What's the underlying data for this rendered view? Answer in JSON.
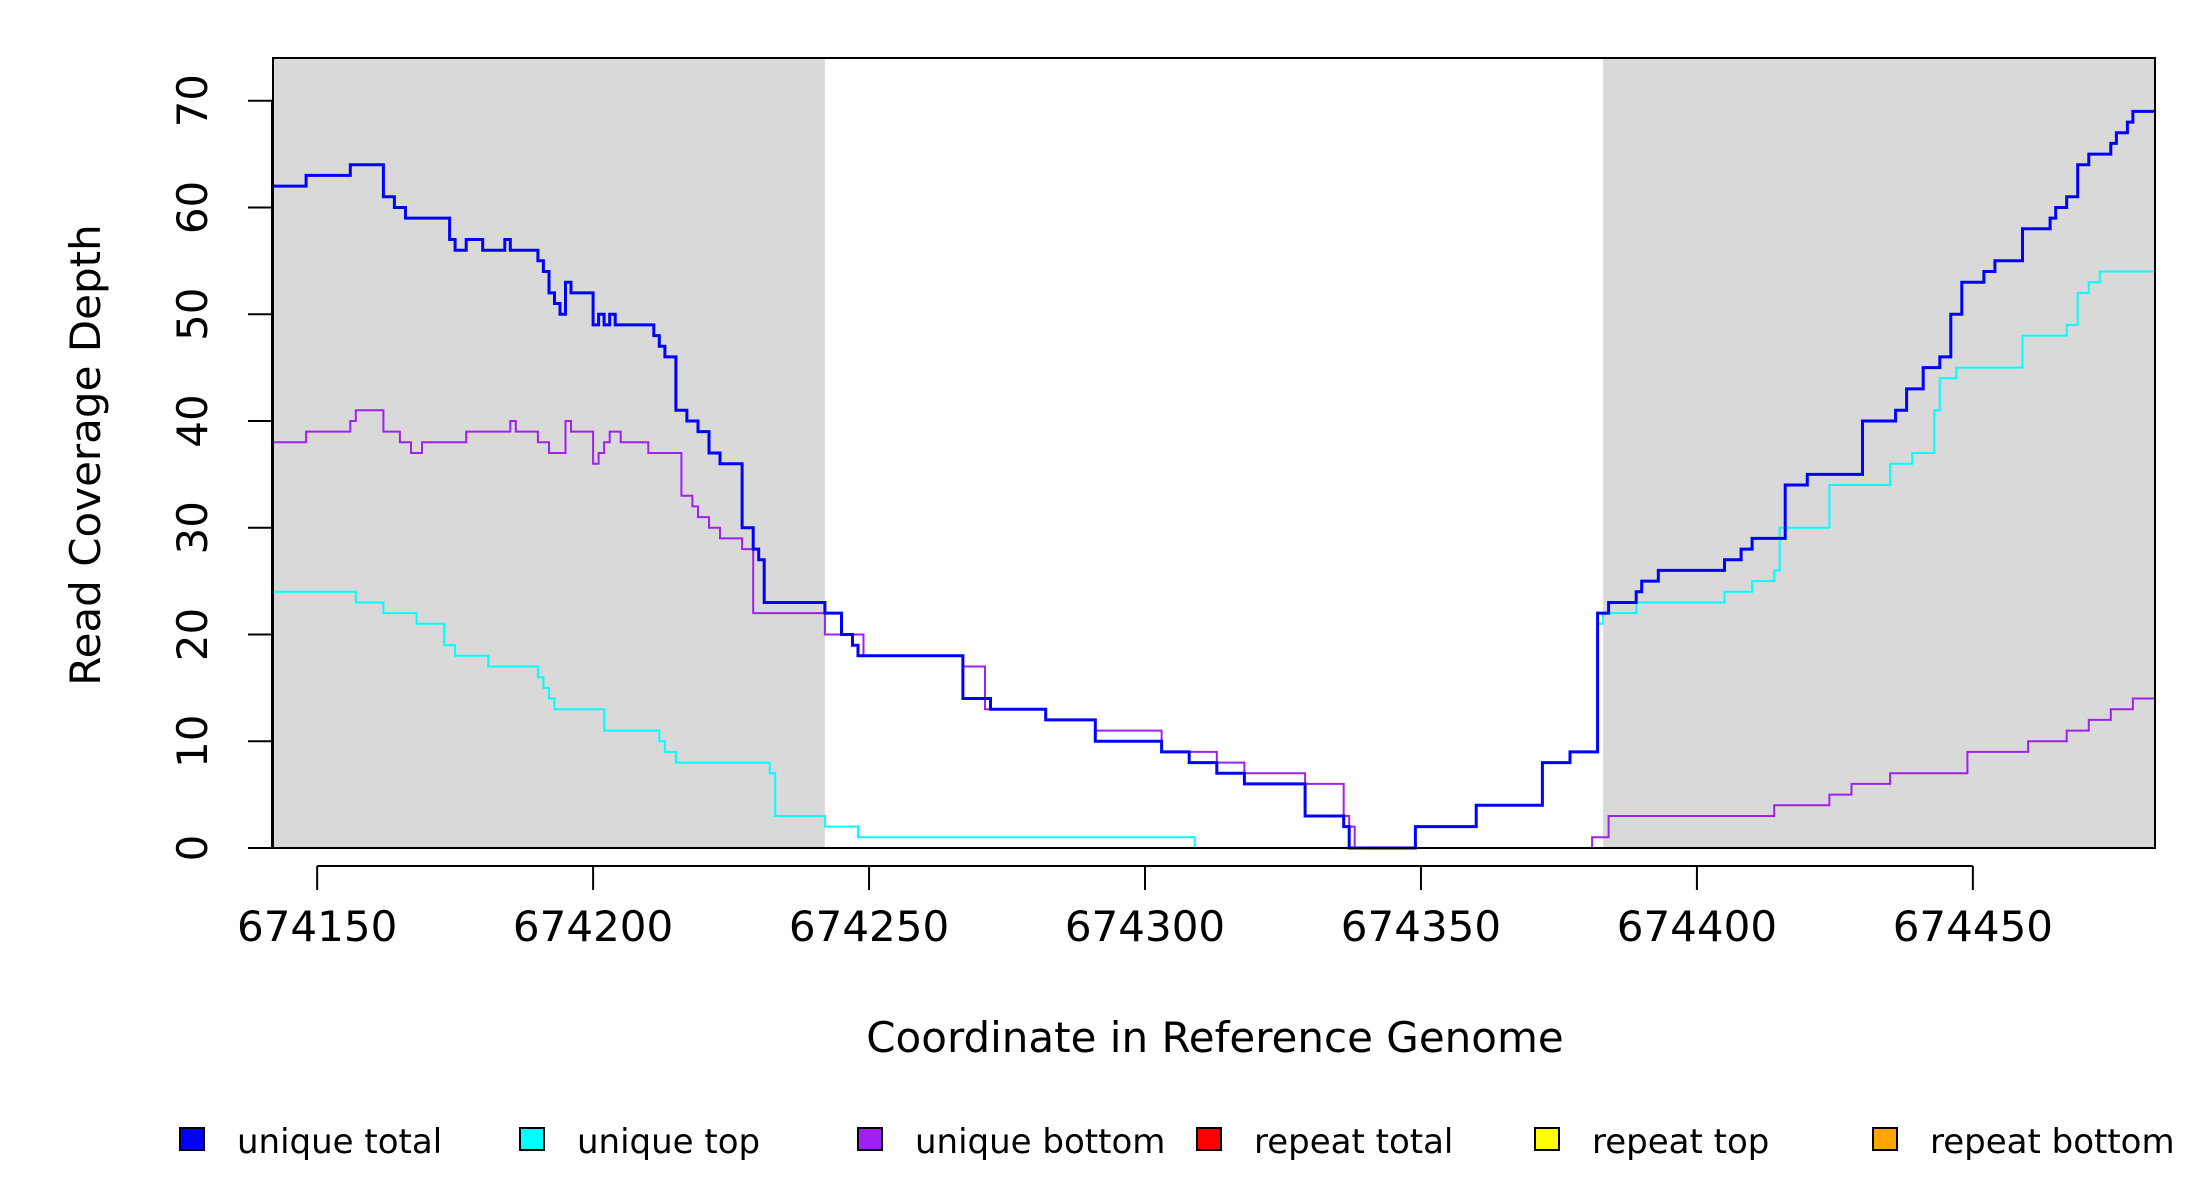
{
  "chart_data": {
    "type": "line",
    "xlabel": "Coordinate in Reference Genome",
    "ylabel": "Read Coverage Depth",
    "xlim": [
      674142,
      674483
    ],
    "ylim": [
      0,
      74
    ],
    "x_ticks": [
      674150,
      674200,
      674250,
      674300,
      674350,
      674400,
      674450
    ],
    "y_ticks": [
      0,
      10,
      20,
      30,
      40,
      50,
      60,
      70
    ],
    "shaded_regions": [
      [
        674142,
        674242
      ],
      [
        674383,
        674483
      ]
    ],
    "background_colors": {
      "shaded": "#d9d9d9",
      "plot": "#ffffff"
    },
    "step_style": "post",
    "legend": [
      {
        "label": "unique total",
        "color": "#0000ff"
      },
      {
        "label": "unique top",
        "color": "#00ffff"
      },
      {
        "label": "unique bottom",
        "color": "#a020f0"
      },
      {
        "label": "repeat total",
        "color": "#ff0000"
      },
      {
        "label": "repeat top",
        "color": "#ffff00"
      },
      {
        "label": "repeat bottom",
        "color": "#ffa500"
      }
    ],
    "legend_position": "bottom",
    "series": [
      {
        "name": "unique total",
        "color": "#0000ff",
        "width": 3,
        "x": [
          674142,
          674148,
          674156,
          674162,
          674164,
          674166,
          674174,
          674175,
          674177,
          674180,
          674184,
          674185,
          674186,
          674190,
          674191,
          674192,
          674193,
          674194,
          674195,
          674196,
          674200,
          674201,
          674202,
          674203,
          674204,
          674206,
          674211,
          674212,
          674213,
          674215,
          674217,
          674219,
          674221,
          674223,
          674227,
          674229,
          674230,
          674231,
          674242,
          674245,
          674247,
          674248,
          674250,
          674267,
          674272,
          674282,
          674291,
          674303,
          674308,
          674313,
          674318,
          674329,
          674336,
          674337,
          674338,
          674349,
          674360,
          674372,
          674377,
          674382,
          674383,
          674384,
          674385,
          674386,
          674389,
          674390,
          674391,
          674393,
          674397,
          674399,
          674400,
          674405,
          674408,
          674410,
          674413,
          674414,
          674415,
          674416,
          674417,
          674418,
          674419,
          674420,
          674425,
          674430,
          674436,
          674437,
          674438,
          674441,
          674444,
          674446,
          674448,
          674450,
          674452,
          674454,
          674459,
          674464,
          674465,
          674467,
          674468,
          674469,
          674471,
          674473,
          674475,
          674476,
          674477,
          674478,
          674479,
          674483
        ],
        "y": [
          62,
          63,
          64,
          61,
          60,
          59,
          57,
          56,
          57,
          56,
          57,
          56,
          56,
          55,
          54,
          52,
          51,
          50,
          53,
          52,
          49,
          50,
          49,
          50,
          49,
          49,
          48,
          47,
          46,
          41,
          40,
          39,
          37,
          36,
          30,
          28,
          27,
          23,
          22,
          20,
          19,
          18,
          18,
          14,
          13,
          12,
          10,
          9,
          8,
          7,
          6,
          3,
          2,
          0,
          0,
          2,
          4,
          8,
          9,
          22,
          22,
          23,
          23,
          23,
          24,
          25,
          25,
          26,
          26,
          26,
          26,
          27,
          28,
          29,
          29,
          29,
          29,
          34,
          34,
          34,
          34,
          35,
          35,
          40,
          41,
          41,
          43,
          45,
          46,
          50,
          53,
          53,
          54,
          55,
          58,
          59,
          60,
          61,
          61,
          64,
          65,
          65,
          66,
          67,
          67,
          68,
          69,
          69
        ]
      },
      {
        "name": "unique top",
        "color": "#00ffff",
        "width": 2,
        "x": [
          674142,
          674157,
          674162,
          674168,
          674173,
          674175,
          674181,
          674190,
          674191,
          674192,
          674193,
          674194,
          674202,
          674212,
          674213,
          674215,
          674225,
          674232,
          674233,
          674242,
          674248,
          674309,
          674349,
          674360,
          674372,
          674377,
          674382,
          674383,
          674384,
          674389,
          674396,
          674405,
          674410,
          674414,
          674415,
          674416,
          674424,
          674435,
          674439,
          674443,
          674444,
          674445,
          674447,
          674459,
          674467,
          674469,
          674470,
          674471,
          674473,
          674483
        ],
        "y": [
          24,
          23,
          22,
          21,
          19,
          18,
          17,
          16,
          15,
          14,
          13,
          13,
          11,
          10,
          9,
          8,
          8,
          7,
          3,
          2,
          1,
          0,
          2,
          4,
          8,
          9,
          21,
          22,
          22,
          23,
          23,
          24,
          25,
          26,
          30,
          30,
          34,
          36,
          37,
          41,
          44,
          44,
          45,
          48,
          49,
          52,
          52,
          53,
          54,
          54
        ]
      },
      {
        "name": "unique bottom",
        "color": "#a020f0",
        "width": 2,
        "x": [
          674142,
          674148,
          674156,
          674157,
          674162,
          674165,
          674167,
          674169,
          674177,
          674184,
          674185,
          674186,
          674190,
          674192,
          674195,
          674196,
          674200,
          674201,
          674202,
          674203,
          674205,
          674210,
          674216,
          674218,
          674219,
          674221,
          674223,
          674227,
          674229,
          674242,
          674249,
          674267,
          674271,
          674282,
          674291,
          674303,
          674313,
          674318,
          674329,
          674336,
          674337,
          674338,
          674381,
          674384,
          674388,
          674402,
          674414,
          674418,
          674424,
          674428,
          674435,
          674449,
          674460,
          674467,
          674471,
          674475,
          674479,
          674483
        ],
        "y": [
          38,
          39,
          40,
          41,
          39,
          38,
          37,
          38,
          39,
          39,
          40,
          39,
          38,
          37,
          40,
          39,
          36,
          37,
          38,
          39,
          38,
          37,
          33,
          32,
          31,
          30,
          29,
          28,
          22,
          20,
          18,
          17,
          13,
          12,
          11,
          9,
          8,
          7,
          6,
          3,
          2,
          0,
          1,
          3,
          3,
          3,
          4,
          4,
          5,
          6,
          7,
          9,
          10,
          11,
          12,
          13,
          14,
          15
        ]
      },
      {
        "name": "repeat total",
        "color": "#ff0000",
        "width": 2,
        "x": [
          674142,
          674483
        ],
        "y": [
          0,
          0
        ]
      },
      {
        "name": "repeat top",
        "color": "#ffff00",
        "width": 2,
        "x": [
          674142,
          674483
        ],
        "y": [
          0,
          0
        ]
      },
      {
        "name": "repeat bottom",
        "color": "#ffa500",
        "width": 2,
        "x": [
          674142,
          674483
        ],
        "y": [
          0,
          0
        ]
      }
    ]
  }
}
